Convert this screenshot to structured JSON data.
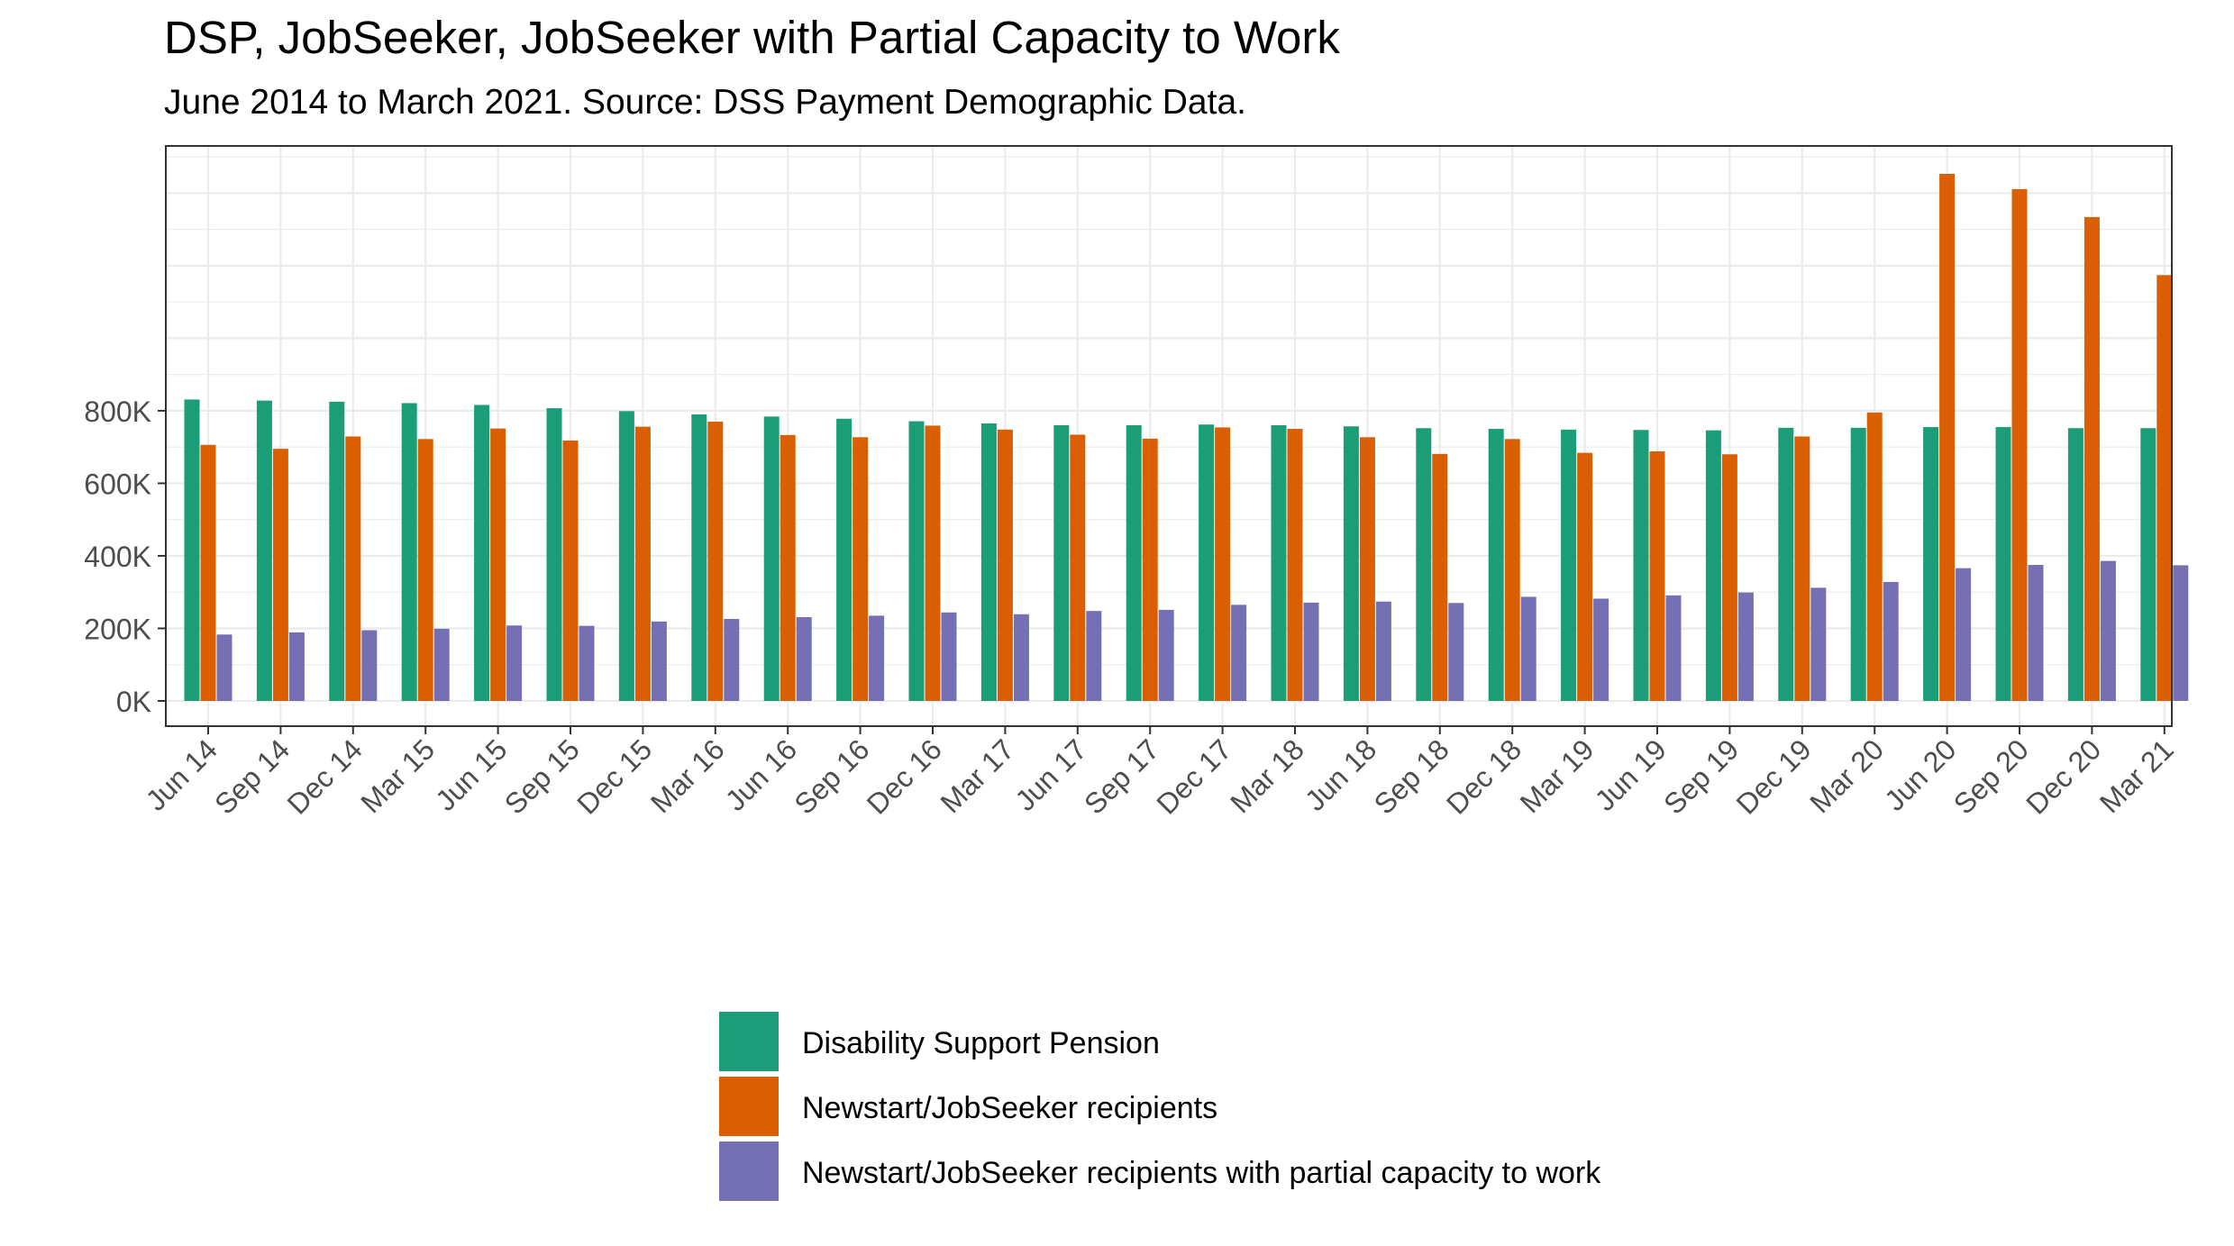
{
  "chart_data": {
    "type": "bar",
    "title": "DSP, JobSeeker, JobSeeker with Partial Capacity to Work",
    "subtitle": "June 2014 to March 2021. Source: DSS Payment Demographic Data.",
    "xlabel": "",
    "ylabel": "",
    "ylim": [
      0,
      1530000
    ],
    "yticks": [
      0,
      200000,
      400000,
      600000,
      800000
    ],
    "ytick_labels": [
      "0K",
      "200K",
      "400K",
      "600K",
      "800K"
    ],
    "grid": true,
    "legend_position": "bottom",
    "categories": [
      "Jun 14",
      "Sep 14",
      "Dec 14",
      "Mar 15",
      "Jun 15",
      "Sep 15",
      "Dec 15",
      "Mar 16",
      "Jun 16",
      "Sep 16",
      "Dec 16",
      "Mar 17",
      "Jun 17",
      "Sep 17",
      "Dec 17",
      "Mar 18",
      "Jun 18",
      "Sep 18",
      "Dec 18",
      "Mar 19",
      "Jun 19",
      "Sep 19",
      "Dec 19",
      "Mar 20",
      "Jun 20",
      "Sep 20",
      "Dec 20",
      "Mar 21"
    ],
    "series": [
      {
        "name": "Disability Support Pension",
        "color": "#1b9e77",
        "values": [
          831000,
          828000,
          825000,
          821000,
          816000,
          807000,
          799000,
          790000,
          784000,
          778000,
          771000,
          765000,
          760000,
          760000,
          762000,
          760000,
          757000,
          752000,
          750000,
          748000,
          747000,
          746000,
          753000,
          753000,
          755000,
          755000,
          752000,
          752000
        ]
      },
      {
        "name": "Newstart/JobSeeker recipients",
        "color": "#d95f02",
        "values": [
          706000,
          695000,
          729000,
          722000,
          751000,
          718000,
          756000,
          770000,
          733000,
          727000,
          759000,
          748000,
          734000,
          723000,
          754000,
          750000,
          727000,
          681000,
          722000,
          684000,
          688000,
          680000,
          729000,
          795000,
          1453000,
          1411000,
          1334000,
          1174000
        ]
      },
      {
        "name": "Newstart/JobSeeker recipients with partial capacity to work",
        "color": "#7570b3",
        "values": [
          183000,
          189000,
          195000,
          199000,
          208000,
          207000,
          219000,
          226000,
          231000,
          235000,
          244000,
          239000,
          248000,
          251000,
          265000,
          271000,
          274000,
          270000,
          287000,
          282000,
          291000,
          299000,
          312000,
          328000,
          366000,
          375000,
          386000,
          374000
        ]
      }
    ]
  }
}
